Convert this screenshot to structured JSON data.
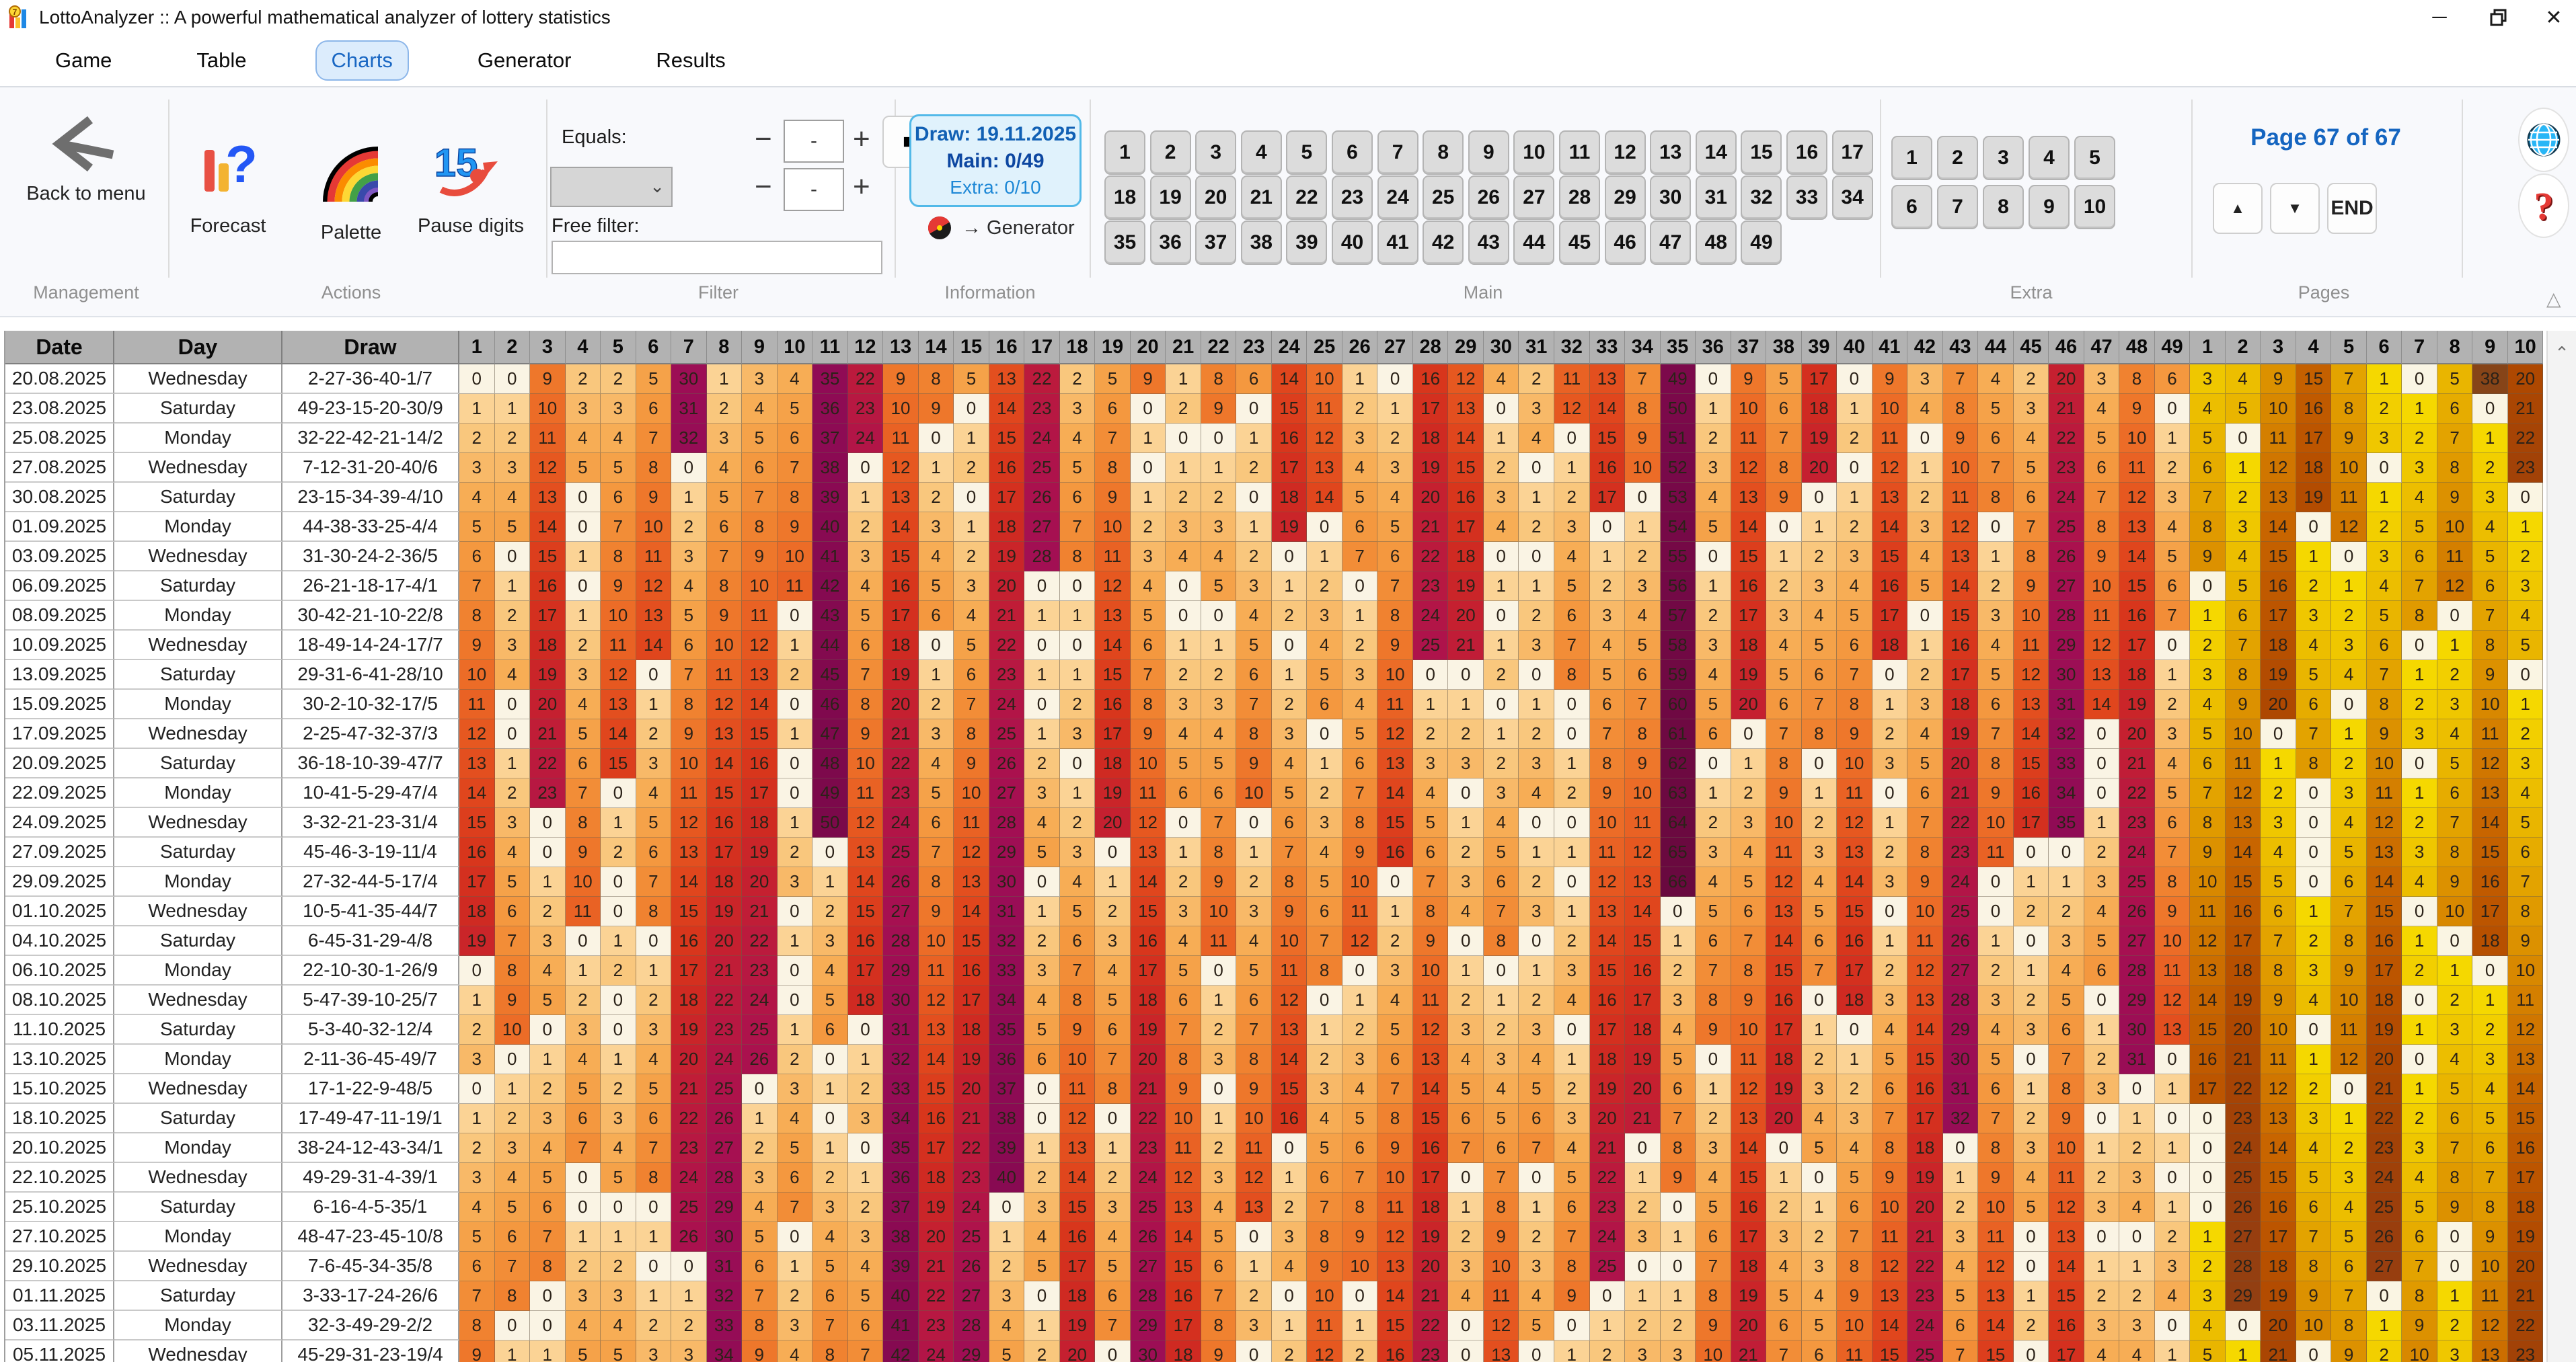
{
  "window": {
    "title": "LottoAnalyzer :: A powerful mathematical analyzer of lottery statistics"
  },
  "menu": {
    "items": [
      "Game",
      "Table",
      "Charts",
      "Generator",
      "Results"
    ],
    "active": "Charts"
  },
  "toolbar": {
    "management": {
      "section_label": "Management",
      "back_label": "Back to menu"
    },
    "actions": {
      "section_label": "Actions",
      "forecast_label": "Forecast",
      "palette_label": "Palette",
      "pause_label": "Pause digits"
    },
    "filter": {
      "section_label": "Filter",
      "equals_label": "Equals:",
      "free_filter_label": "Free filter:",
      "minus_glyph": "−",
      "plus_glyph": "+",
      "spinner1_value": "-",
      "spinner2_value": "-",
      "stop_glyph": "■",
      "dropdown_value": "",
      "free_filter_value": ""
    },
    "information": {
      "section_label": "Information",
      "draw_line": "Draw: 19.11.2025",
      "main_line": "Main: 0/49",
      "extra_line": "Extra: 0/10",
      "generator_label": "→ Generator"
    },
    "main_numbers": {
      "section_label": "Main",
      "numbers": [
        1,
        2,
        3,
        4,
        5,
        6,
        7,
        8,
        9,
        10,
        11,
        12,
        13,
        14,
        15,
        16,
        17,
        18,
        19,
        20,
        21,
        22,
        23,
        24,
        25,
        26,
        27,
        28,
        29,
        30,
        31,
        32,
        33,
        34,
        35,
        36,
        37,
        38,
        39,
        40,
        41,
        42,
        43,
        44,
        45,
        46,
        47,
        48,
        49
      ],
      "per_row": 17
    },
    "extra_numbers": {
      "section_label": "Extra",
      "numbers": [
        1,
        2,
        3,
        4,
        5,
        6,
        7,
        8,
        9,
        10
      ],
      "per_row": 5
    },
    "pages": {
      "section_label": "Pages",
      "page_text": "Page 67 of 67",
      "up_glyph": "▲",
      "down_glyph": "▼",
      "end_label": "END"
    }
  },
  "side_icons": {
    "collapse_glyph": "△",
    "scroll_up_glyph": "⌃"
  },
  "table": {
    "headers": {
      "date": "Date",
      "day": "Day",
      "draw": "Draw",
      "main_cols": [
        1,
        2,
        3,
        4,
        5,
        6,
        7,
        8,
        9,
        10,
        11,
        12,
        13,
        14,
        15,
        16,
        17,
        18,
        19,
        20,
        21,
        22,
        23,
        24,
        25,
        26,
        27,
        28,
        29,
        30,
        31,
        32,
        33,
        34,
        35,
        36,
        37,
        38,
        39,
        40,
        41,
        42,
        43,
        44,
        45,
        46,
        47,
        48,
        49
      ],
      "extra_cols": [
        1,
        2,
        3,
        4,
        5,
        6,
        7,
        8,
        9,
        10
      ]
    },
    "initial_main": [
      0,
      0,
      9,
      2,
      2,
      5,
      30,
      1,
      3,
      4,
      35,
      22,
      9,
      8,
      5,
      13,
      22,
      2,
      5,
      9,
      1,
      8,
      6,
      14,
      10,
      1,
      0,
      16,
      12,
      4,
      2,
      11,
      13,
      7,
      49,
      0,
      9,
      5,
      17,
      0,
      9,
      3,
      7,
      4,
      2,
      20,
      3,
      8,
      6
    ],
    "initial_extra": [
      3,
      4,
      9,
      15,
      7,
      1,
      0,
      5,
      38,
      20
    ],
    "rows": [
      {
        "date": "20.08.2025",
        "day": "Wednesday",
        "draw": "2-27-36-40-1/7"
      },
      {
        "date": "23.08.2025",
        "day": "Saturday",
        "draw": "49-23-15-20-30/9"
      },
      {
        "date": "25.08.2025",
        "day": "Monday",
        "draw": "32-22-42-21-14/2"
      },
      {
        "date": "27.08.2025",
        "day": "Wednesday",
        "draw": "7-12-31-20-40/6"
      },
      {
        "date": "30.08.2025",
        "day": "Saturday",
        "draw": "23-15-34-39-4/10"
      },
      {
        "date": "01.09.2025",
        "day": "Monday",
        "draw": "44-38-33-25-4/4"
      },
      {
        "date": "03.09.2025",
        "day": "Wednesday",
        "draw": "31-30-24-2-36/5"
      },
      {
        "date": "06.09.2025",
        "day": "Saturday",
        "draw": "26-21-18-17-4/1"
      },
      {
        "date": "08.09.2025",
        "day": "Monday",
        "draw": "30-42-21-10-22/8"
      },
      {
        "date": "10.09.2025",
        "day": "Wednesday",
        "draw": "18-49-14-24-17/7"
      },
      {
        "date": "13.09.2025",
        "day": "Saturday",
        "draw": "29-31-6-41-28/10"
      },
      {
        "date": "15.09.2025",
        "day": "Monday",
        "draw": "30-2-10-32-17/5"
      },
      {
        "date": "17.09.2025",
        "day": "Wednesday",
        "draw": "2-25-47-32-37/3"
      },
      {
        "date": "20.09.2025",
        "day": "Saturday",
        "draw": "36-18-10-39-47/7"
      },
      {
        "date": "22.09.2025",
        "day": "Monday",
        "draw": "10-41-5-29-47/4"
      },
      {
        "date": "24.09.2025",
        "day": "Wednesday",
        "draw": "3-32-21-23-31/4"
      },
      {
        "date": "27.09.2025",
        "day": "Saturday",
        "draw": "45-46-3-19-11/4"
      },
      {
        "date": "29.09.2025",
        "day": "Monday",
        "draw": "27-32-44-5-17/4"
      },
      {
        "date": "01.10.2025",
        "day": "Wednesday",
        "draw": "10-5-41-35-44/7"
      },
      {
        "date": "04.10.2025",
        "day": "Saturday",
        "draw": "6-45-31-29-4/8"
      },
      {
        "date": "06.10.2025",
        "day": "Monday",
        "draw": "22-10-30-1-26/9"
      },
      {
        "date": "08.10.2025",
        "day": "Wednesday",
        "draw": "5-47-39-10-25/7"
      },
      {
        "date": "11.10.2025",
        "day": "Saturday",
        "draw": "5-3-40-32-12/4"
      },
      {
        "date": "13.10.2025",
        "day": "Monday",
        "draw": "2-11-36-45-49/7"
      },
      {
        "date": "15.10.2025",
        "day": "Wednesday",
        "draw": "17-1-22-9-48/5"
      },
      {
        "date": "18.10.2025",
        "day": "Saturday",
        "draw": "17-49-47-11-19/1"
      },
      {
        "date": "20.10.2025",
        "day": "Monday",
        "draw": "38-24-12-43-34/1"
      },
      {
        "date": "22.10.2025",
        "day": "Wednesday",
        "draw": "49-29-31-4-39/1"
      },
      {
        "date": "25.10.2025",
        "day": "Saturday",
        "draw": "6-16-4-5-35/1"
      },
      {
        "date": "27.10.2025",
        "day": "Monday",
        "draw": "48-47-23-45-10/8"
      },
      {
        "date": "29.10.2025",
        "day": "Wednesday",
        "draw": "7-6-45-34-35/8"
      },
      {
        "date": "01.11.2025",
        "day": "Saturday",
        "draw": "3-33-17-24-26/6"
      },
      {
        "date": "03.11.2025",
        "day": "Monday",
        "draw": "32-3-49-29-2/2"
      },
      {
        "date": "05.11.2025",
        "day": "Wednesday",
        "draw": "45-29-31-23-19/4"
      }
    ],
    "palette_main": [
      [
        0,
        "#faf4e4"
      ],
      [
        1,
        "#fbd395"
      ],
      [
        2,
        "#f9c77d"
      ],
      [
        3,
        "#f8b968"
      ],
      [
        4,
        "#f7ad55"
      ],
      [
        5,
        "#f5a249"
      ],
      [
        6,
        "#f4983f"
      ],
      [
        7,
        "#f28d37"
      ],
      [
        8,
        "#f08230"
      ],
      [
        9,
        "#ee772b"
      ],
      [
        10,
        "#ec6c27"
      ],
      [
        12,
        "#e65820"
      ],
      [
        14,
        "#e0461d"
      ],
      [
        16,
        "#d8361c"
      ],
      [
        18,
        "#cf2a22"
      ],
      [
        20,
        "#c52030"
      ],
      [
        22,
        "#bb1a3d"
      ],
      [
        24,
        "#b21547"
      ],
      [
        26,
        "#aa114e"
      ],
      [
        28,
        "#a20f53"
      ],
      [
        31,
        "#990d56"
      ],
      [
        35,
        "#900b55"
      ],
      [
        40,
        "#880a52"
      ],
      [
        48,
        "#7d094c"
      ],
      [
        58,
        "#710944"
      ],
      [
        76,
        "#5e0a38"
      ]
    ],
    "palette_extra": [
      [
        0,
        "#faf5e3"
      ],
      [
        1,
        "#f5d800"
      ],
      [
        2,
        "#f2cf00"
      ],
      [
        3,
        "#efc700"
      ],
      [
        4,
        "#ecbe00"
      ],
      [
        5,
        "#e9b500"
      ],
      [
        6,
        "#e6ac00"
      ],
      [
        7,
        "#e3a300"
      ],
      [
        8,
        "#e09a00"
      ],
      [
        9,
        "#dc9100"
      ],
      [
        10,
        "#d88800"
      ],
      [
        12,
        "#d07600"
      ],
      [
        14,
        "#c86500"
      ],
      [
        16,
        "#c05a00"
      ],
      [
        18,
        "#b75000"
      ],
      [
        20,
        "#ae4801"
      ],
      [
        23,
        "#a24207"
      ],
      [
        26,
        "#993e0d"
      ],
      [
        30,
        "#8f3f13"
      ],
      [
        38,
        "#864418"
      ],
      [
        52,
        "#693617"
      ]
    ]
  }
}
